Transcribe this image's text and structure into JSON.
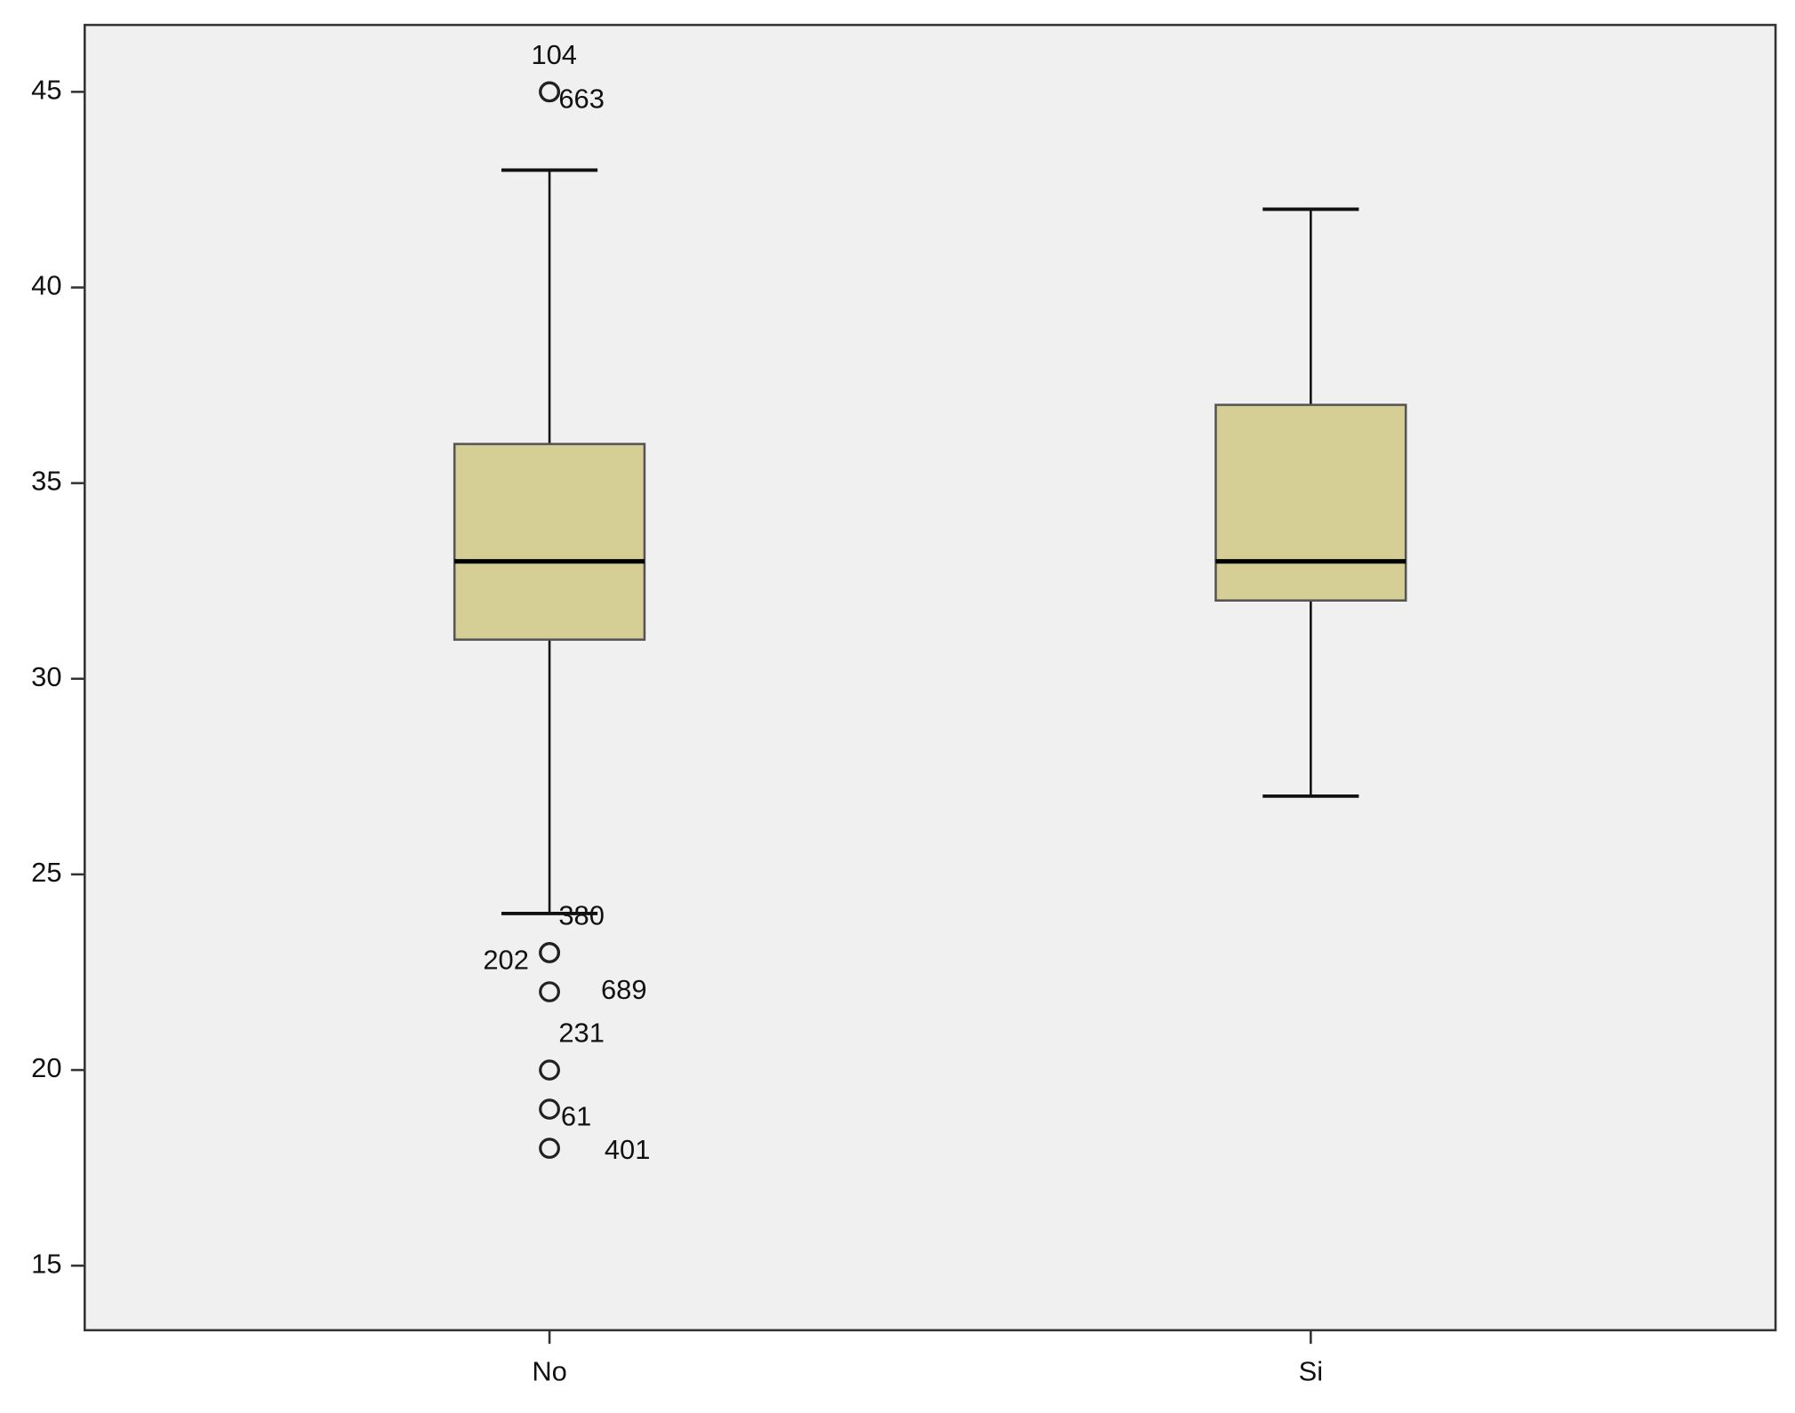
{
  "chart_data": {
    "type": "boxplot",
    "categories": [
      "No",
      "Si"
    ],
    "color": "#d5cf96",
    "ylim": [
      13.35,
      46.71
    ],
    "yticks": [
      15,
      20,
      25,
      30,
      35,
      40,
      45
    ],
    "boxes": [
      {
        "min": 24,
        "q1": 31,
        "median": 33,
        "q3": 36,
        "max": 43,
        "outliers": [
          {
            "value": 45,
            "label": "104"
          },
          {
            "value": 45,
            "label": "663"
          },
          {
            "value": 23,
            "label": "380"
          },
          {
            "value": 23,
            "label": "202"
          },
          {
            "value": 22,
            "label": "689"
          },
          {
            "value": 20,
            "label": "231"
          },
          {
            "value": 19,
            "label": "61"
          },
          {
            "value": 18,
            "label": "401"
          }
        ]
      },
      {
        "min": 27,
        "q1": 32,
        "median": 33,
        "q3": 37,
        "max": 42,
        "outliers": []
      }
    ]
  }
}
